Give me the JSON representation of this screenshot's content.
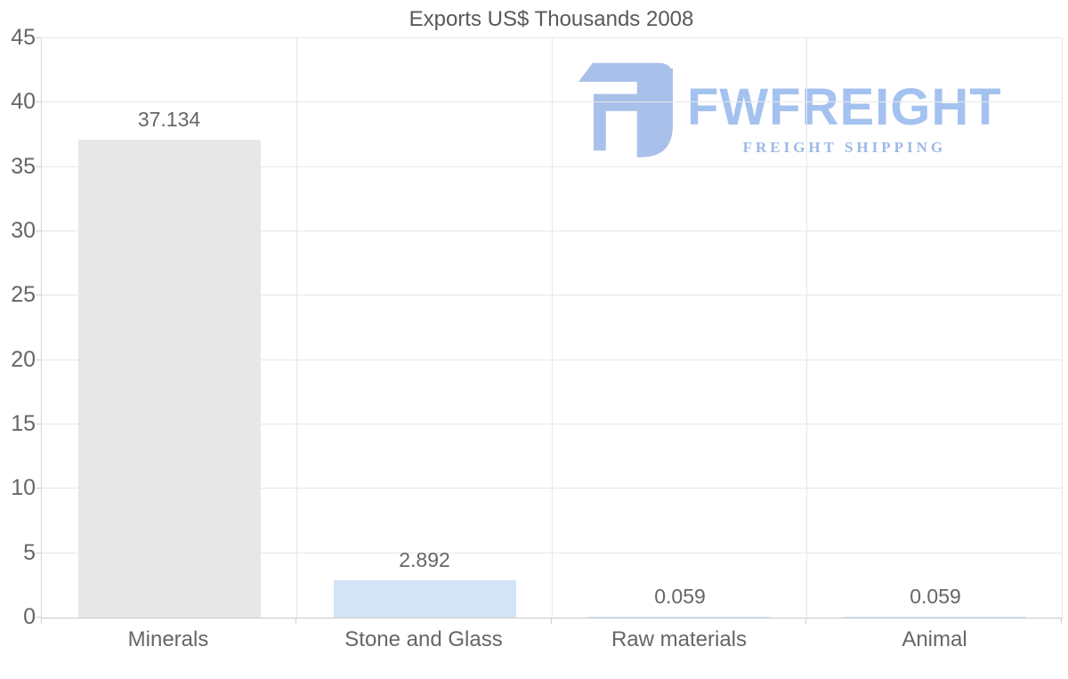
{
  "title": "Exports US$ Thousands 2008",
  "logo": {
    "brand": "FWFREIGHT",
    "tagline": "FREIGHT SHIPPING",
    "icon_color": "#a9c0ea",
    "brand_color": "#a4c2ef",
    "tagline_color": "#9db9e8"
  },
  "chart_data": {
    "type": "bar",
    "title": "Exports US$ Thousands 2008",
    "categories": [
      "Minerals",
      "Stone and Glass",
      "Raw materials",
      "Animal"
    ],
    "values": [
      37.134,
      2.892,
      0.059,
      0.059
    ],
    "value_labels": [
      "37.134",
      "2.892",
      "0.059",
      "0.059"
    ],
    "bar_colors": [
      "#e7e7e7",
      "#d3e4f6",
      "#d3e4f6",
      "#d3e4f6"
    ],
    "xlabel": "",
    "ylabel": "",
    "ylim": [
      0,
      45
    ],
    "yticks": [
      0,
      5,
      10,
      15,
      20,
      25,
      30,
      35,
      40,
      45
    ],
    "ytick_labels": [
      "0",
      "5",
      "10",
      "15",
      "20",
      "25",
      "30",
      "35",
      "40",
      "45"
    ],
    "grid": true,
    "legend": "none",
    "colors": {
      "grid": "#e7e7e7",
      "axis": "#c9c9c9",
      "text": "#666666",
      "title_text": "#595959"
    }
  }
}
